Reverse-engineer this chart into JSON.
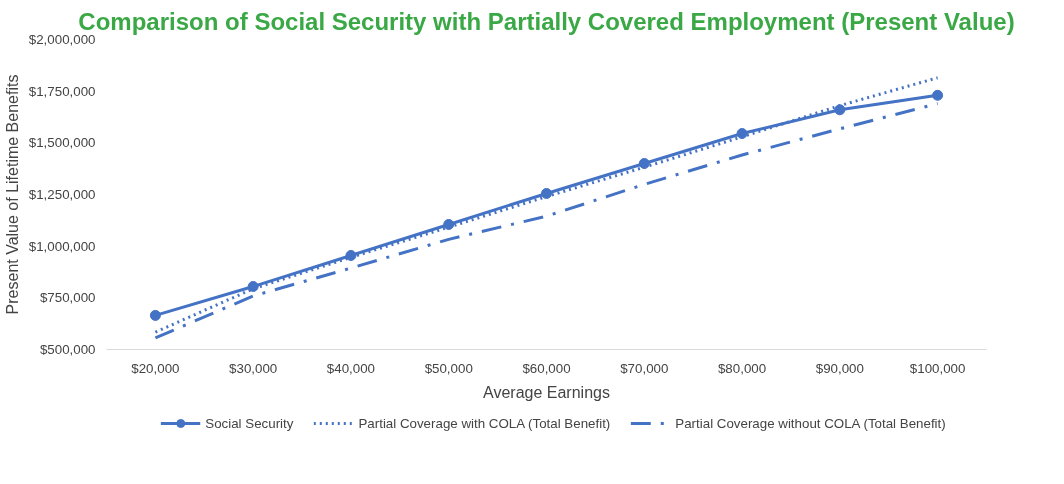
{
  "chart_data": {
    "type": "line",
    "title": "Comparison of Social Security with Partially Covered Employment (Present Value)",
    "xlabel": "Average Earnings",
    "ylabel": "Present Value of Lifetime Benefits",
    "x": [
      20000,
      30000,
      40000,
      50000,
      60000,
      70000,
      80000,
      90000,
      100000
    ],
    "xlim": [
      15000,
      105000
    ],
    "xticks": [
      {
        "value": 20000,
        "label": "$20,000"
      },
      {
        "value": 30000,
        "label": "$30,000"
      },
      {
        "value": 40000,
        "label": "$40,000"
      },
      {
        "value": 50000,
        "label": "$50,000"
      },
      {
        "value": 60000,
        "label": "$60,000"
      },
      {
        "value": 70000,
        "label": "$70,000"
      },
      {
        "value": 80000,
        "label": "$80,000"
      },
      {
        "value": 90000,
        "label": "$90,000"
      },
      {
        "value": 100000,
        "label": "$100,000"
      }
    ],
    "ylim": [
      500000,
      2000000
    ],
    "yticks": [
      {
        "value": 500000,
        "label": "$500,000"
      },
      {
        "value": 750000,
        "label": "$750,000"
      },
      {
        "value": 1000000,
        "label": "$1,000,000"
      },
      {
        "value": 1250000,
        "label": "$1,250,000"
      },
      {
        "value": 1500000,
        "label": "$1,500,000"
      },
      {
        "value": 1750000,
        "label": "$1,750,000"
      },
      {
        "value": 2000000,
        "label": "$2,000,000"
      }
    ],
    "grid": false,
    "legend": "bottom",
    "series": [
      {
        "name": "Social Security",
        "color": "#4472c4",
        "marker": "circle",
        "line_style": "solid",
        "values": [
          665000,
          805000,
          955000,
          1105000,
          1255000,
          1400000,
          1545000,
          1660000,
          1730000
        ]
      },
      {
        "name": "Partial Coverage with COLA (Total Benefit)",
        "color": "#4472c4",
        "marker": "none",
        "line_style": "dotted",
        "values": [
          584000,
          794000,
          946000,
          1092000,
          1240000,
          1382000,
          1529000,
          1680000,
          1815000
        ]
      },
      {
        "name": "Partial Coverage without COLA (Total Benefit)",
        "color": "#4472c4",
        "marker": "none",
        "line_style": "dashdot",
        "values": [
          556000,
          759000,
          894000,
          1033000,
          1145000,
          1299000,
          1441000,
          1568000,
          1690000
        ]
      }
    ]
  }
}
